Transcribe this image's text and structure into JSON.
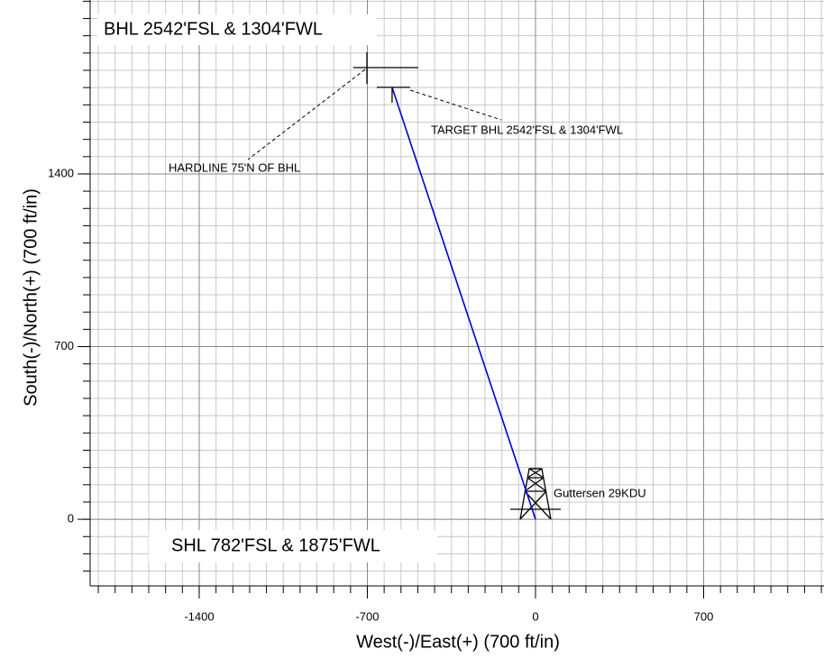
{
  "chart_data": {
    "type": "line",
    "xlabel": "West(-)/East(+) (700 ft/in)",
    "ylabel": "South(-)/North(+) (700 ft/in)",
    "xlim": [
      -1854,
      1201
    ],
    "ylim": [
      -270,
      2105
    ],
    "xticks": [
      -1400,
      -700,
      0,
      700
    ],
    "yticks": [
      0,
      700,
      1400
    ],
    "grid": true,
    "series": [
      {
        "color": "#0000cc",
        "x": [
          0,
          -597
        ],
        "y": [
          0,
          1751
        ]
      }
    ],
    "annotations": {
      "bhl": "BHL 2542'FSL & 1304'FWL",
      "shl": "SHL 782'FSL & 1875'FWL",
      "target": "TARGET BHL 2542'FSL & 1304'FWL",
      "hardline": "HARDLINE 75'N OF BHL",
      "rig": "Guttersen 29KDU"
    }
  }
}
